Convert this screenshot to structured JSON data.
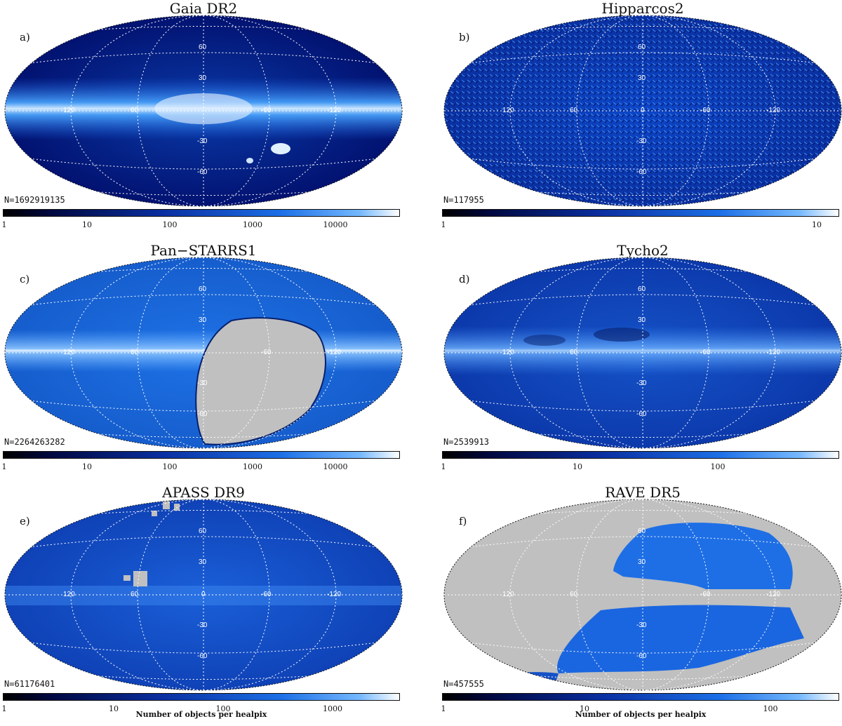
{
  "colors": {
    "colormap_dark": "#000010",
    "colormap_mid": "#0a3fbf",
    "colormap_bright": "#3a8ff0",
    "colormap_top": "#ffffff",
    "masked_region": "#c0c0c0",
    "grid_lines": "#ffffff"
  },
  "shared": {
    "longitude_labels": [
      "120",
      "60",
      "0",
      "-60",
      "-120"
    ],
    "latitude_labels": [
      "60",
      "30",
      "0",
      "-30",
      "-60"
    ]
  },
  "panels": [
    {
      "title": "Gaia DR2",
      "label": "a)",
      "count": "N=1692919135",
      "colorbar_ticks": [
        "1",
        "10",
        "100",
        "1000",
        "10000"
      ],
      "colorbar_title": "",
      "density_level": 0.72,
      "show_lon_zero": false
    },
    {
      "title": "Hipparcos2",
      "label": "b)",
      "count": "N=117955",
      "colorbar_ticks": [
        "1",
        "10"
      ],
      "colorbar_title": "",
      "density_level": 0.4,
      "show_lon_zero": true
    },
    {
      "title": "Pan−STARRS1",
      "label": "c)",
      "count": "N=2264263282",
      "colorbar_ticks": [
        "1",
        "10",
        "100",
        "1000",
        "10000"
      ],
      "colorbar_title": "",
      "density_level": 0.82,
      "show_lon_zero": false
    },
    {
      "title": "Tycho2",
      "label": "d)",
      "count": "N=2539913",
      "colorbar_ticks": [
        "1",
        "10",
        "100"
      ],
      "colorbar_title": "",
      "density_level": 0.6,
      "show_lon_zero": false
    },
    {
      "title": "APASS DR9",
      "label": "e)",
      "count": "N=61176401",
      "colorbar_ticks": [
        "1",
        "10",
        "100",
        "1000"
      ],
      "colorbar_title": "Number of objects per healpix",
      "density_level": 0.55,
      "show_lon_zero": true
    },
    {
      "title": "RAVE DR5",
      "label": "f)",
      "count": "N=457555",
      "colorbar_ticks": [
        "1",
        "10",
        "100"
      ],
      "colorbar_title": "Number of objects per healpix",
      "density_level": 0.6,
      "show_lon_zero": false
    }
  ]
}
